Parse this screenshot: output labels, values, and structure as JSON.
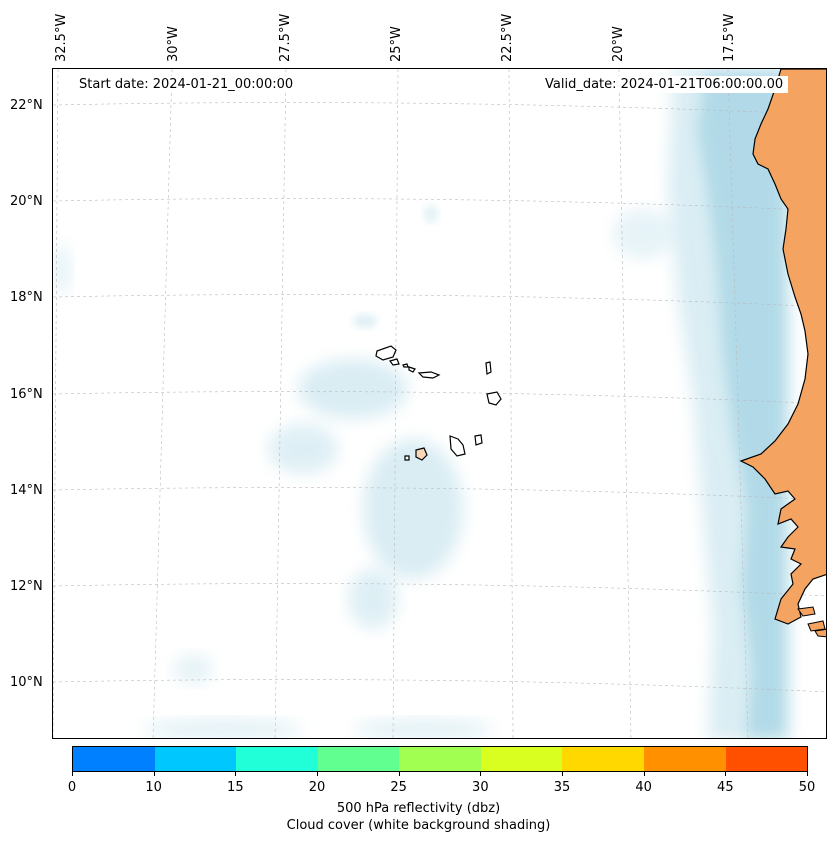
{
  "map": {
    "start_date": "Start date: 2024-01-21_00:00:00",
    "valid_date": "Valid_date: 2024-01-21T06:00:00.00",
    "lon_labels": [
      "32.5°W",
      "30°W",
      "27.5°W",
      "25°W",
      "22.5°W",
      "20°W",
      "17.5°W"
    ],
    "lat_labels": [
      "22°N",
      "20°N",
      "18°N",
      "16°N",
      "14°N",
      "12°N",
      "10°N"
    ],
    "land_color": "#f4a460",
    "cloud_color": "#add8e6",
    "gridlines": true
  },
  "colorbar": {
    "ticks": [
      "0",
      "10",
      "15",
      "20",
      "25",
      "30",
      "35",
      "40",
      "45",
      "50"
    ],
    "colors": [
      "#0080ff",
      "#00c8ff",
      "#20ffd8",
      "#60ff90",
      "#a0ff50",
      "#d8ff20",
      "#ffd800",
      "#ff9000",
      "#ff5000"
    ],
    "label": "500 hPa reflectivity (dbz)",
    "sublabel": "Cloud cover (white background shading)"
  }
}
